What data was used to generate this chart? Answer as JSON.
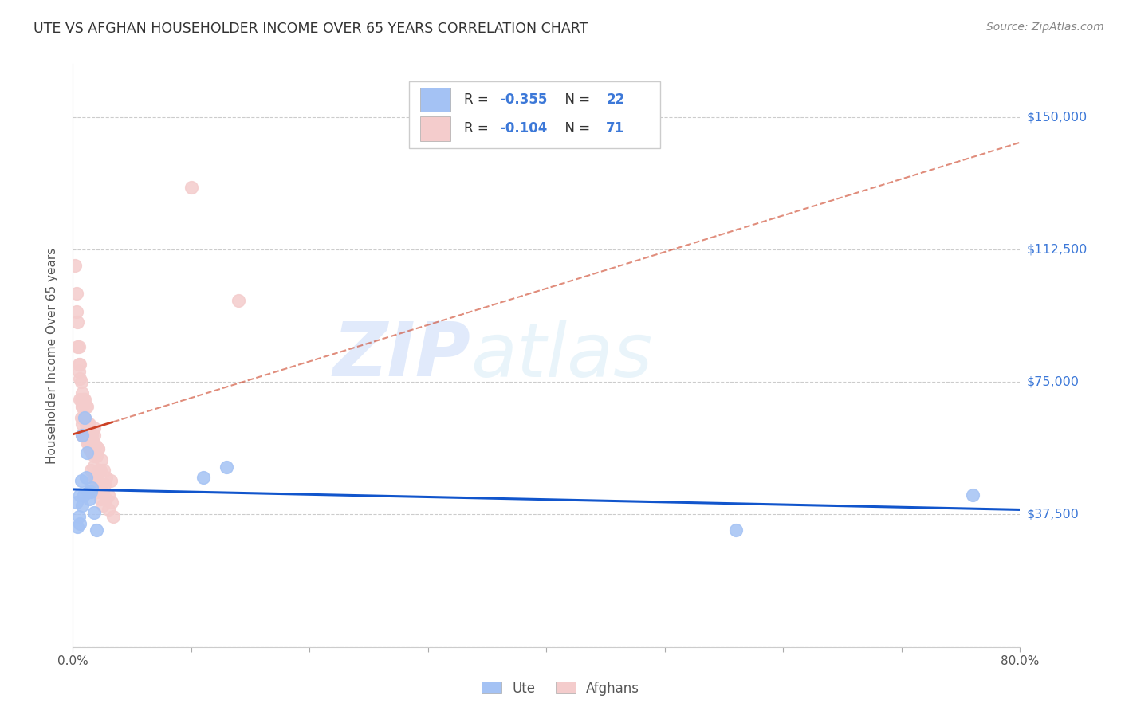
{
  "title": "UTE VS AFGHAN HOUSEHOLDER INCOME OVER 65 YEARS CORRELATION CHART",
  "source": "Source: ZipAtlas.com",
  "ylabel": "Householder Income Over 65 years",
  "y_ticks": [
    0,
    37500,
    75000,
    112500,
    150000
  ],
  "y_tick_labels": [
    "",
    "$37,500",
    "$75,000",
    "$112,500",
    "$150,000"
  ],
  "x_min": 0.0,
  "x_max": 0.8,
  "y_min": 0,
  "y_max": 165000,
  "ute_color": "#a4c2f4",
  "afghan_color": "#f4cccc",
  "ute_line_color": "#1155cc",
  "afghan_line_color": "#cc4125",
  "ute_label": "Ute",
  "afghan_label": "Afghans",
  "ute_R": "-0.355",
  "ute_N": "22",
  "afghan_R": "-0.104",
  "afghan_N": "71",
  "watermark_zip": "ZIP",
  "watermark_atlas": "atlas",
  "ute_x": [
    0.003,
    0.004,
    0.005,
    0.006,
    0.006,
    0.007,
    0.008,
    0.008,
    0.009,
    0.01,
    0.011,
    0.012,
    0.013,
    0.014,
    0.015,
    0.016,
    0.018,
    0.02,
    0.11,
    0.13,
    0.56,
    0.76
  ],
  "ute_y": [
    41000,
    34000,
    37000,
    43000,
    35000,
    47000,
    60000,
    40000,
    43000,
    65000,
    48000,
    55000,
    44000,
    42000,
    44000,
    45000,
    38000,
    33000,
    48000,
    51000,
    33000,
    43000
  ],
  "afghan_x": [
    0.002,
    0.003,
    0.003,
    0.004,
    0.004,
    0.005,
    0.005,
    0.005,
    0.006,
    0.006,
    0.006,
    0.007,
    0.007,
    0.007,
    0.008,
    0.008,
    0.008,
    0.008,
    0.009,
    0.009,
    0.01,
    0.01,
    0.01,
    0.011,
    0.011,
    0.011,
    0.012,
    0.012,
    0.012,
    0.013,
    0.013,
    0.014,
    0.014,
    0.015,
    0.015,
    0.015,
    0.016,
    0.016,
    0.017,
    0.017,
    0.018,
    0.018,
    0.018,
    0.019,
    0.019,
    0.02,
    0.02,
    0.021,
    0.021,
    0.022,
    0.022,
    0.023,
    0.023,
    0.024,
    0.024,
    0.025,
    0.025,
    0.026,
    0.027,
    0.028,
    0.028,
    0.03,
    0.03,
    0.032,
    0.033,
    0.034,
    0.1,
    0.14,
    0.021,
    0.018,
    0.008
  ],
  "afghan_y": [
    108000,
    100000,
    95000,
    92000,
    85000,
    85000,
    80000,
    78000,
    80000,
    76000,
    70000,
    75000,
    70000,
    65000,
    72000,
    68000,
    63000,
    60000,
    70000,
    65000,
    70000,
    65000,
    60000,
    68000,
    63000,
    60000,
    68000,
    62000,
    58000,
    63000,
    58000,
    63000,
    56000,
    60000,
    57000,
    50000,
    60000,
    55000,
    58000,
    51000,
    60000,
    54000,
    48000,
    57000,
    47000,
    54000,
    48000,
    56000,
    44000,
    50000,
    46000,
    50000,
    42000,
    53000,
    46000,
    44000,
    40000,
    50000,
    46000,
    42000,
    48000,
    43000,
    39000,
    47000,
    41000,
    37000,
    130000,
    98000,
    56000,
    62000,
    68000
  ]
}
